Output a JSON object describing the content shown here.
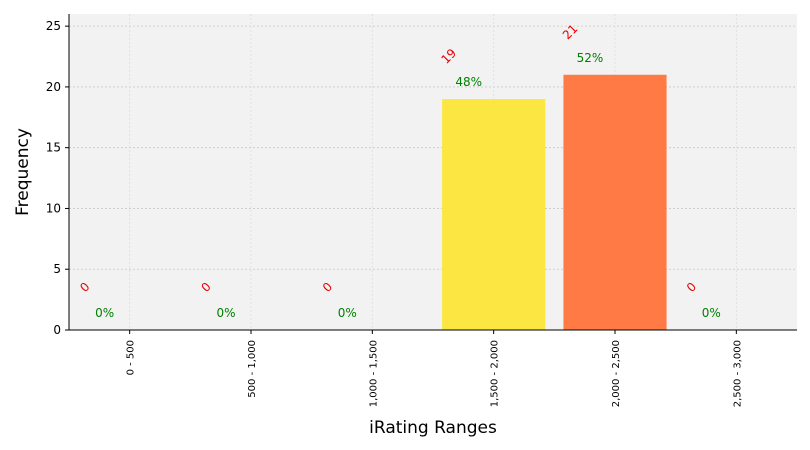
{
  "chart_data": {
    "type": "bar",
    "title": "",
    "xlabel": "iRating Ranges",
    "ylabel": "Frequency",
    "categories": [
      "0 - 500",
      "500 - 1,000",
      "1,000 - 1,500",
      "1,500 - 2,000",
      "2,000 - 2,500",
      "2,500 - 3,000"
    ],
    "values": [
      0,
      0,
      0,
      19,
      21,
      0
    ],
    "count_labels": [
      "0",
      "0",
      "0",
      "19",
      "21",
      "0"
    ],
    "percent_labels": [
      "0%",
      "0%",
      "0%",
      "48%",
      "52%",
      "0%"
    ],
    "bar_colors": [
      "#ffffff",
      "#ffffff",
      "#ffffff",
      "#fbe642",
      "#ff7a45",
      "#ffffff"
    ],
    "ylim": [
      0,
      26
    ],
    "yticks": [
      0,
      5,
      10,
      15,
      20,
      25
    ],
    "ytick_labels": [
      "0",
      "5",
      "10",
      "15",
      "20",
      "25"
    ],
    "grid": true,
    "colors": {
      "plot_background": "#f2f2f2",
      "grid": "#c8c8c8",
      "count_label": "#e60000",
      "percent_label": "#008000"
    }
  }
}
